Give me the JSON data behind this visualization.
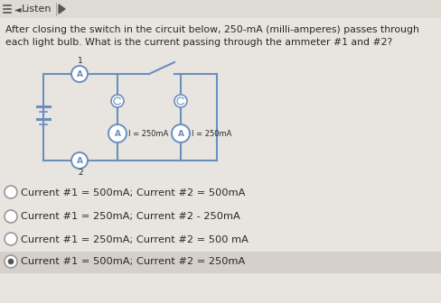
{
  "bg_color": "#e8e5e0",
  "header_bg": "#dedad4",
  "question_line1": "After closing the switch in the circuit below, 250-mA (milli-amperes) passes through",
  "question_line2": "each light bulb. What is the current passing through the ammeter #1 and #2?",
  "options": [
    "Current #1 = 500mA; Current #2 = 500mA",
    "Current #1 = 250mA; Current #2 - 250mA",
    "Current #1 = 250mA; Current #2 = 500 mA",
    "Current #1 = 500mA; Current #2 = 250mA"
  ],
  "selected_option": 3,
  "text_color": "#2a2828",
  "circuit_color": "#6a8fbf",
  "highlight_color": "#d5d0cb"
}
